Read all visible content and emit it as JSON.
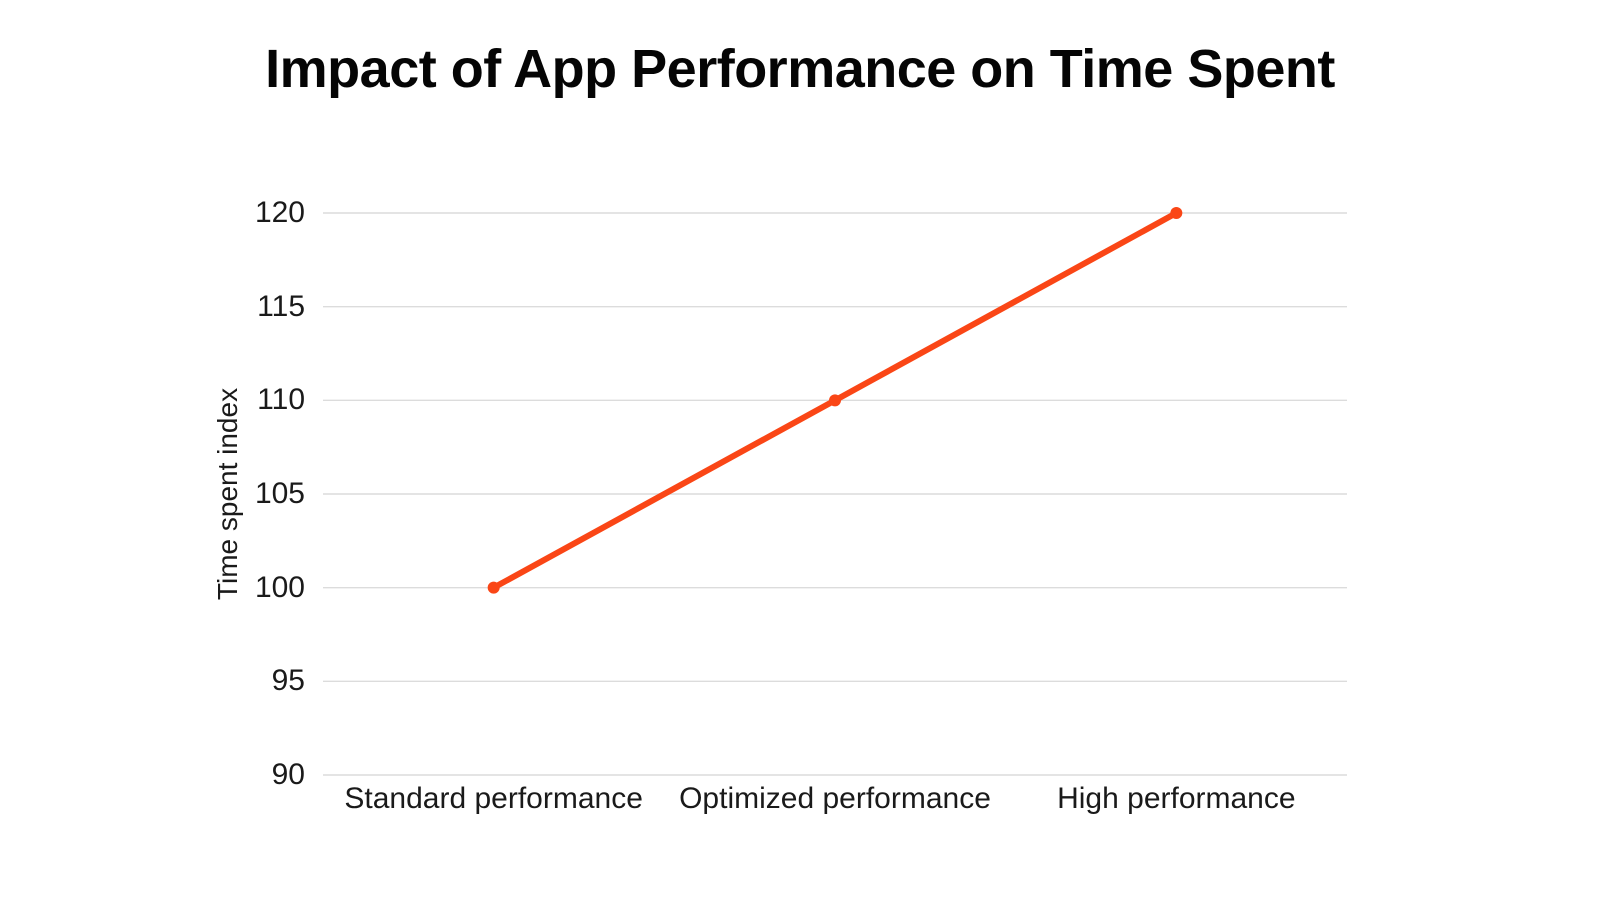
{
  "chart_data": {
    "type": "line",
    "title": "Impact of App Performance on Time Spent",
    "ylabel": "Time spent index",
    "xlabel": "",
    "categories": [
      "Standard performance",
      "Optimized performance",
      "High performance"
    ],
    "series": [
      {
        "name": "Time spent index",
        "values": [
          100,
          110,
          120
        ]
      }
    ],
    "ylim": [
      90,
      120
    ],
    "ytick_interval": 5,
    "y_tick_labels": [
      "120",
      "115",
      "110",
      "105",
      "100",
      "95",
      "90"
    ],
    "y_tick_values": [
      120,
      115,
      110,
      105,
      100,
      95,
      90
    ],
    "grid": "horizontal-only",
    "legend_position": "none",
    "marker_style": "filled-circle",
    "colors": {
      "line": "#FA4616",
      "marker": "#FA4616",
      "gridline": "#DCDCDC",
      "background": "#FFFFFF",
      "title_text": "#050505",
      "axis_text": "#1A1A1A"
    }
  }
}
